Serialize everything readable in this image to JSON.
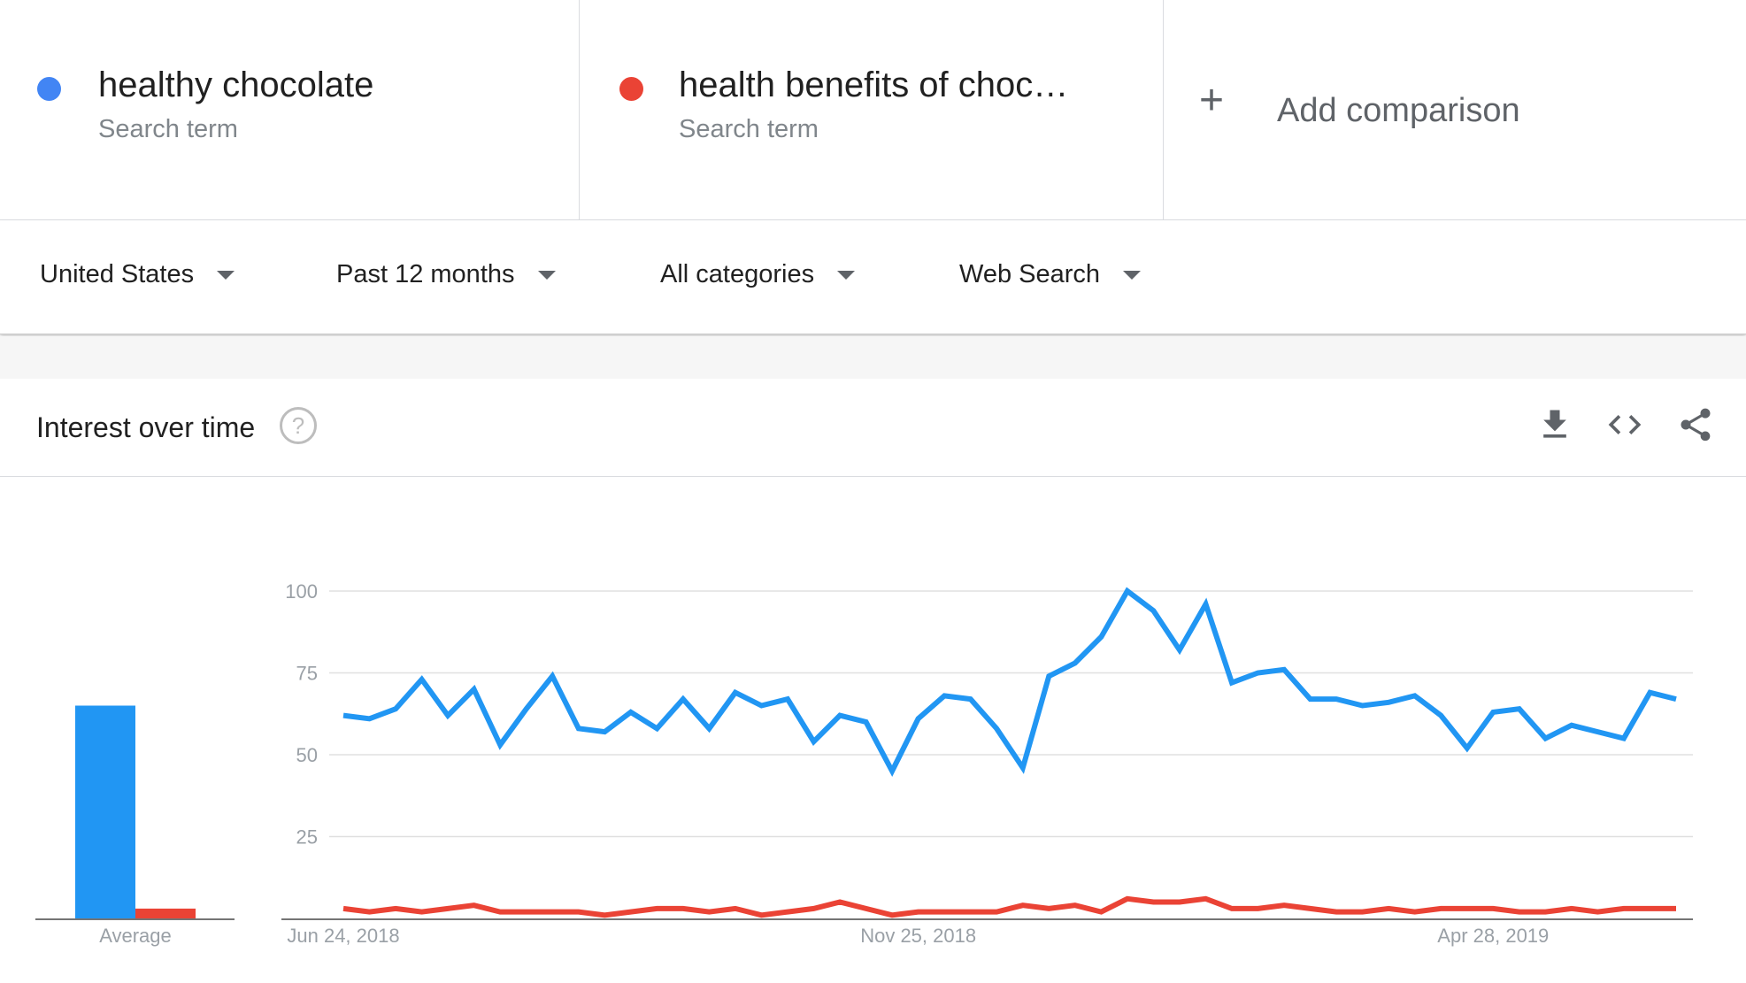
{
  "comparison": {
    "terms": [
      {
        "name": "healthy chocolate",
        "type": "Search term",
        "color": "#4285f4"
      },
      {
        "name": "health benefits of choc…",
        "type": "Search term",
        "color": "#ea4335"
      }
    ],
    "add_label": "Add comparison",
    "add_icon": "plus-icon"
  },
  "filters": [
    {
      "label": "United States",
      "icon": "caret-down-icon"
    },
    {
      "label": "Past 12 months",
      "icon": "caret-down-icon"
    },
    {
      "label": "All categories",
      "icon": "caret-down-icon"
    },
    {
      "label": "Web Search",
      "icon": "caret-down-icon"
    }
  ],
  "card": {
    "title": "Interest over time",
    "help_icon": "help-icon",
    "help_glyph": "?",
    "actions": [
      "download-icon",
      "embed-code-icon",
      "share-icon"
    ]
  },
  "chart_data": [
    {
      "type": "bar",
      "categories": [
        "Average"
      ],
      "xlabel": "Average",
      "series": [
        {
          "name": "healthy chocolate",
          "color": "#2196f3",
          "values": [
            65
          ]
        },
        {
          "name": "health benefits of choc…",
          "color": "#ea4335",
          "values": [
            3
          ]
        }
      ],
      "ylim": [
        0,
        100
      ]
    },
    {
      "type": "line",
      "x_tick_labels": [
        "Jun 24, 2018",
        "Nov 25, 2018",
        "Apr 28, 2019"
      ],
      "x_tick_indices": [
        0,
        22,
        44
      ],
      "y_ticks": [
        25,
        50,
        75,
        100
      ],
      "y_tick_labels": [
        "25",
        "50",
        "75",
        "100"
      ],
      "ylim": [
        0,
        100
      ],
      "grid": true,
      "series": [
        {
          "name": "healthy chocolate",
          "color": "#2196f3",
          "values": [
            62,
            61,
            64,
            73,
            62,
            70,
            53,
            64,
            74,
            58,
            57,
            63,
            58,
            67,
            58,
            69,
            65,
            67,
            54,
            62,
            60,
            45,
            61,
            68,
            67,
            58,
            46,
            74,
            78,
            86,
            100,
            94,
            82,
            96,
            72,
            75,
            76,
            67,
            67,
            65,
            66,
            68,
            62,
            52,
            63,
            64,
            55,
            59,
            57,
            55,
            69,
            67
          ]
        },
        {
          "name": "health benefits of choc…",
          "color": "#ea4335",
          "values": [
            3,
            2,
            3,
            2,
            3,
            4,
            2,
            2,
            2,
            2,
            1,
            2,
            3,
            3,
            2,
            3,
            1,
            2,
            3,
            5,
            3,
            1,
            2,
            2,
            2,
            2,
            4,
            3,
            4,
            2,
            6,
            5,
            5,
            6,
            3,
            3,
            4,
            3,
            2,
            2,
            3,
            2,
            3,
            3,
            3,
            2,
            2,
            3,
            2,
            3,
            3,
            3
          ]
        }
      ]
    }
  ]
}
